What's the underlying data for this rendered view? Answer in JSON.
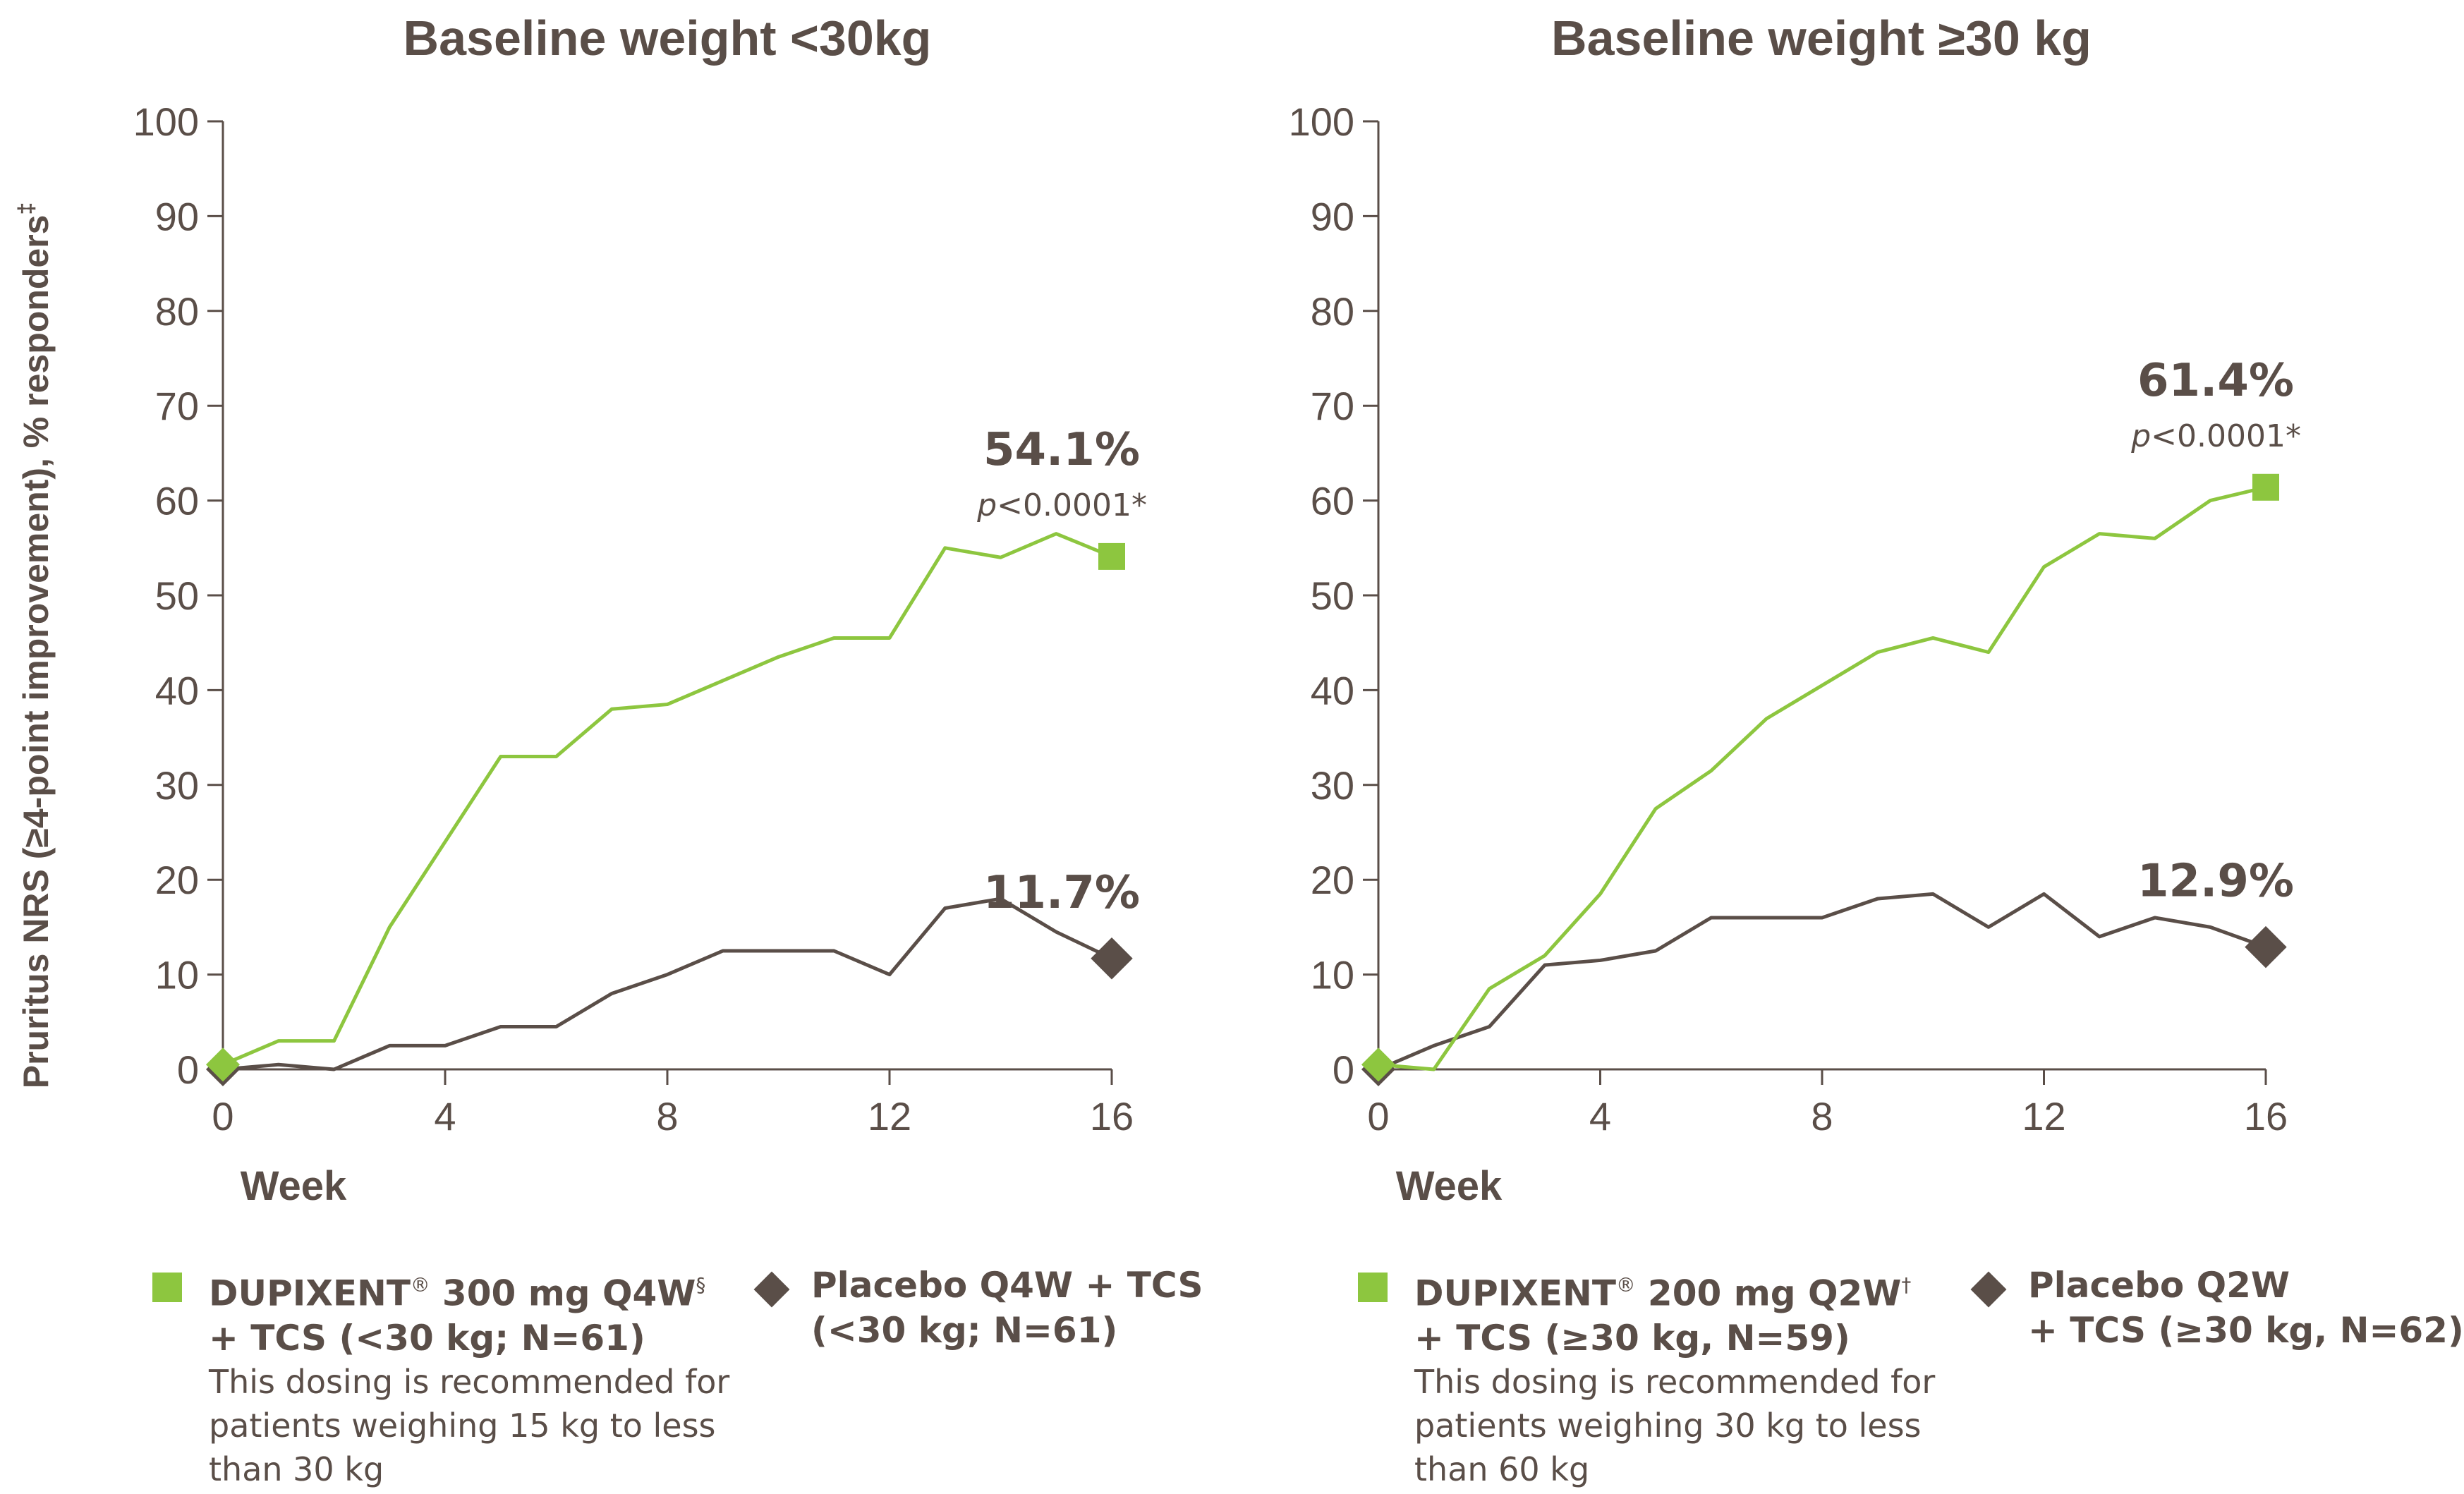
{
  "chart_data": [
    {
      "type": "line",
      "title": "Baseline weight <30kg",
      "xlabel": "Week",
      "ylabel": "Pruritus NRS (≥4-point improvement), % responders",
      "ylabel_footnote": "‡",
      "xlim": [
        0,
        16
      ],
      "ylim": [
        0,
        100
      ],
      "xticks": [
        "0",
        "4",
        "8",
        "12",
        "16"
      ],
      "yticks": [
        "0",
        "10",
        "20",
        "30",
        "40",
        "50",
        "60",
        "70",
        "80",
        "90",
        "100"
      ],
      "grid": false,
      "series": [
        {
          "name": "DUPIXENT® 300 mg Q4W§ + TCS (<30 kg; N=61)",
          "color": "#8dc63f",
          "end_marker": "square-icon",
          "x": [
            0,
            1,
            2,
            3,
            4,
            5,
            6,
            7,
            8,
            9,
            10,
            11,
            12,
            13,
            14,
            15,
            16
          ],
          "y": [
            0.5,
            3,
            3,
            15,
            24,
            33,
            33,
            38,
            38.5,
            41,
            43.5,
            45.5,
            45.5,
            55,
            54,
            56.5,
            54.1
          ]
        },
        {
          "name": "Placebo Q4W + TCS (<30 kg; N=61)",
          "color": "#5a4e48",
          "end_marker": "diamond-icon",
          "x": [
            0,
            1,
            2,
            3,
            4,
            5,
            6,
            7,
            8,
            9,
            10,
            11,
            12,
            13,
            14,
            15,
            16
          ],
          "y": [
            0,
            0.5,
            0,
            2.5,
            2.5,
            4.5,
            4.5,
            8,
            10,
            12.5,
            12.5,
            12.5,
            10,
            17,
            18,
            14.5,
            11.7
          ]
        }
      ],
      "annotations": [
        {
          "text": "54.1%",
          "subtext_italic": "p",
          "subtext": "<0.0001*"
        },
        {
          "text": "11.7%"
        }
      ]
    },
    {
      "type": "line",
      "title": "Baseline weight ≥30 kg",
      "xlabel": "Week",
      "xlim": [
        0,
        16
      ],
      "ylim": [
        0,
        100
      ],
      "xticks": [
        "0",
        "4",
        "8",
        "12",
        "16"
      ],
      "yticks": [
        "0",
        "10",
        "20",
        "30",
        "40",
        "50",
        "60",
        "70",
        "80",
        "90",
        "100"
      ],
      "grid": false,
      "series": [
        {
          "name": "DUPIXENT® 200 mg Q2W† + TCS (≥30 kg, N=59)",
          "color": "#8dc63f",
          "end_marker": "square-icon",
          "x": [
            0,
            1,
            2,
            3,
            4,
            5,
            6,
            7,
            8,
            9,
            10,
            11,
            12,
            13,
            14,
            15,
            16
          ],
          "y": [
            0.5,
            0,
            8.5,
            12,
            18.5,
            27.5,
            31.5,
            37,
            40.5,
            44,
            45.5,
            44,
            53,
            56.5,
            56,
            60,
            61.4
          ]
        },
        {
          "name": "Placebo Q2W + TCS (≥30 kg, N=62)",
          "color": "#5a4e48",
          "end_marker": "diamond-icon",
          "x": [
            0,
            1,
            2,
            3,
            4,
            5,
            6,
            7,
            8,
            9,
            10,
            11,
            12,
            13,
            14,
            15,
            16
          ],
          "y": [
            0,
            2.5,
            4.5,
            11,
            11.5,
            12.5,
            16,
            16,
            16,
            18,
            18.5,
            15,
            18.5,
            14,
            16,
            15,
            12.9
          ]
        }
      ],
      "annotations": [
        {
          "text": "61.4%",
          "subtext_italic": "p",
          "subtext": "<0.0001*"
        },
        {
          "text": "12.9%"
        }
      ]
    }
  ],
  "legend": [
    {
      "brand": "DUPIXENT",
      "reg": "®",
      "dose": " 300 mg Q4W",
      "footnote": "§",
      "line2": "+ TCS (<30 kg; N=61)",
      "note": "This dosing is recommended for patients weighing 15 kg to less than 30 kg",
      "marker": "square-icon",
      "color": "#8dc63f"
    },
    {
      "line1": "Placebo Q4W + TCS",
      "line2": "(<30 kg; N=61)",
      "marker": "diamond-icon",
      "color": "#5a4e48"
    },
    {
      "brand": "DUPIXENT",
      "reg": "®",
      "dose": " 200 mg Q2W",
      "footnote": "†",
      "line2": "+ TCS (≥30 kg, N=59)",
      "note": "This dosing is recommended for patients weighing 30 kg to less than 60 kg",
      "marker": "square-icon",
      "color": "#8dc63f"
    },
    {
      "line1": "Placebo Q2W",
      "line2": "+ TCS (≥30 kg, N=62)",
      "marker": "diamond-icon",
      "color": "#5a4e48"
    }
  ]
}
